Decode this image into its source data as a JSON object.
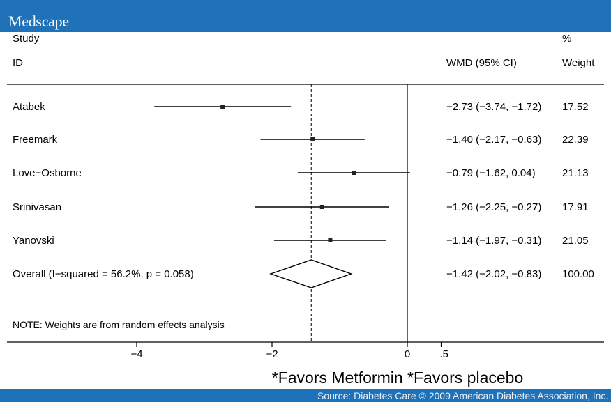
{
  "brand": "Medscape",
  "headers": {
    "study_top": "Study",
    "study_bottom": "ID",
    "effect": "WMD (95% CI)",
    "weight_top": "%",
    "weight_bottom": "Weight"
  },
  "chart_data": {
    "type": "forest",
    "xlabel": "*Favors Metformin *Favors placebo",
    "x_ticks": [
      -4,
      -2,
      0,
      0.5
    ],
    "x_tick_labels": [
      "−4",
      "−2",
      "0",
      ".5"
    ],
    "no_effect_line": 0,
    "overall_line": -1.42,
    "rows": [
      {
        "study": "Atabek",
        "wmd": -2.73,
        "ci_low": -3.74,
        "ci_high": -1.72,
        "ci_text": "−2.73 (−3.74, −1.72)",
        "weight": "17.52"
      },
      {
        "study": "Freemark",
        "wmd": -1.4,
        "ci_low": -2.17,
        "ci_high": -0.63,
        "ci_text": "−1.40 (−2.17, −0.63)",
        "weight": "22.39"
      },
      {
        "study": "Love−Osborne",
        "wmd": -0.79,
        "ci_low": -1.62,
        "ci_high": 0.04,
        "ci_text": "−0.79 (−1.62, 0.04)",
        "weight": "21.13"
      },
      {
        "study": "Srinivasan",
        "wmd": -1.26,
        "ci_low": -2.25,
        "ci_high": -0.27,
        "ci_text": "−1.26 (−2.25, −0.27)",
        "weight": "17.91"
      },
      {
        "study": "Yanovski",
        "wmd": -1.14,
        "ci_low": -1.97,
        "ci_high": -0.31,
        "ci_text": "−1.14 (−1.97, −0.31)",
        "weight": "21.05"
      }
    ],
    "overall": {
      "label": "Overall  (I−squared = 56.2%, p = 0.058)",
      "wmd": -1.42,
      "ci_low": -2.02,
      "ci_high": -0.83,
      "ci_text": "−1.42 (−2.02, −0.83)",
      "weight": "100.00"
    },
    "note": "NOTE: Weights are from random effects analysis"
  },
  "source": "Source: Diabetes Care © 2009 American Diabetes Association, Inc."
}
